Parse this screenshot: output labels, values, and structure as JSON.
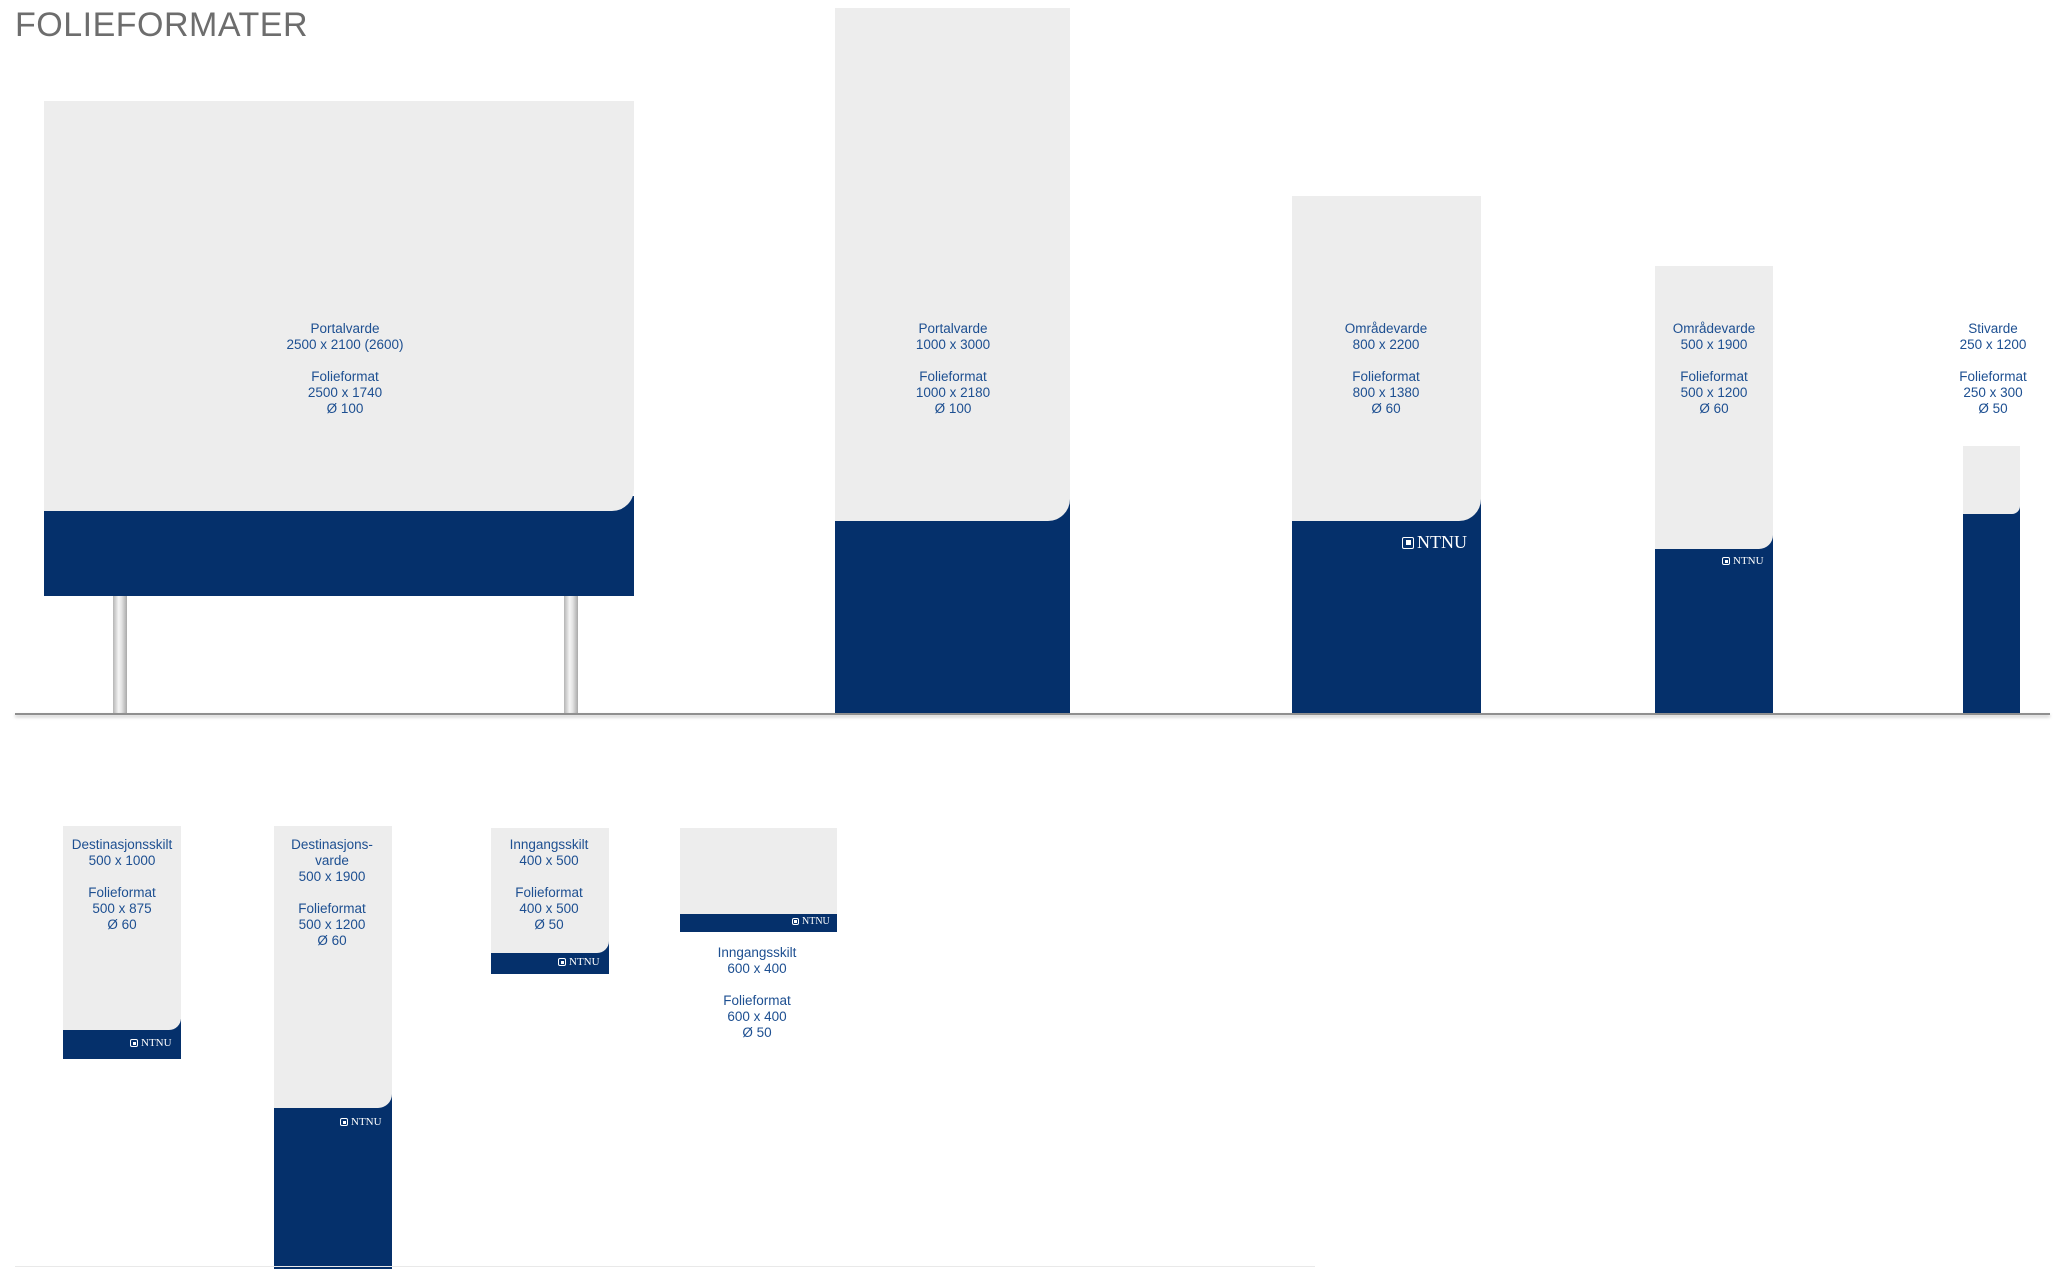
{
  "title": "FOLIEFORMATER",
  "colors": {
    "panel": "#ededed",
    "band": "#05306b",
    "label": "#1d4f91",
    "title": "#6d6d6d"
  },
  "signs": [
    {
      "name": "portalvarde-2500",
      "lines": [
        "Portalvarde",
        "2500 x 2100 (2600)",
        "",
        "Folieformat",
        "2500 x 1740",
        "Ø 100"
      ]
    },
    {
      "name": "portalvarde-1000",
      "lines": [
        "Portalvarde",
        "1000 x 3000",
        "",
        "Folieformat",
        "1000 x 2180",
        "Ø 100"
      ]
    },
    {
      "name": "omradevarde-800",
      "lines": [
        "Områdevarde",
        "800 x 2200",
        "",
        "Folieformat",
        "800 x 1380",
        "Ø 60"
      ],
      "logo": "NTNU"
    },
    {
      "name": "omradevarde-500",
      "lines": [
        "Områdevarde",
        "500 x 1900",
        "",
        "Folieformat",
        "500 x 1200",
        "Ø 60"
      ],
      "logo": "NTNU"
    },
    {
      "name": "stivarde-250",
      "lines": [
        "Stivarde",
        "250 x 1200",
        "",
        "Folieformat",
        "250 x 300",
        "Ø 50"
      ]
    },
    {
      "name": "destinasjonsskilt-500",
      "lines": [
        "Destinasjonsskilt",
        "500 x 1000",
        "",
        "Folieformat",
        "500 x 875",
        "Ø 60"
      ],
      "logo": "NTNU"
    },
    {
      "name": "destinasjonsvarde-500",
      "lines": [
        "Destinasjons-",
        "varde",
        "500 x 1900",
        "",
        "Folieformat",
        "500 x 1200",
        "Ø 60"
      ],
      "logo": "NTNU"
    },
    {
      "name": "inngangsskilt-400",
      "lines": [
        "Inngangsskilt",
        "400 x 500",
        "",
        "Folieformat",
        "400 x 500",
        "Ø 50"
      ],
      "logo": "NTNU"
    },
    {
      "name": "inngangsskilt-600",
      "lines": [
        "Inngangsskilt",
        "600 x 400",
        "",
        "Folieformat",
        "600 x 400",
        "Ø 50"
      ],
      "logo": "NTNU"
    }
  ]
}
